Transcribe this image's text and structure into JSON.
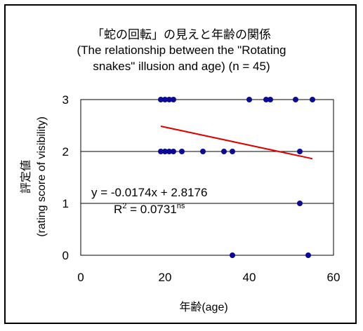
{
  "chart_data": {
    "type": "scatter",
    "title_lines": [
      "「蛇の回転」の見えと年齢の関係",
      "(The relationship between the \"Rotating",
      "snakes\" illusion and age) (n = 45)"
    ],
    "xlabel": "年齢(age)",
    "ylabel_lines": [
      "評定値",
      "(rating score of visibility)"
    ],
    "xlim": [
      0,
      60
    ],
    "ylim": [
      0,
      3
    ],
    "xticks": [
      0,
      20,
      40,
      60
    ],
    "yticks": [
      0,
      1,
      2,
      3
    ],
    "grid": "horizontal",
    "series": [
      {
        "color": "#0a0a96",
        "points": [
          {
            "x": 19,
            "y": 3
          },
          {
            "x": 20,
            "y": 3
          },
          {
            "x": 21,
            "y": 3
          },
          {
            "x": 22,
            "y": 3
          },
          {
            "x": 40,
            "y": 3
          },
          {
            "x": 44,
            "y": 3
          },
          {
            "x": 45,
            "y": 3
          },
          {
            "x": 51,
            "y": 3
          },
          {
            "x": 55,
            "y": 3
          },
          {
            "x": 19,
            "y": 2
          },
          {
            "x": 20,
            "y": 2
          },
          {
            "x": 21,
            "y": 2
          },
          {
            "x": 22,
            "y": 2
          },
          {
            "x": 24,
            "y": 2
          },
          {
            "x": 29,
            "y": 2
          },
          {
            "x": 34,
            "y": 2
          },
          {
            "x": 36,
            "y": 2
          },
          {
            "x": 52,
            "y": 2
          },
          {
            "x": 52,
            "y": 1
          },
          {
            "x": 36,
            "y": 0
          },
          {
            "x": 54,
            "y": 0
          }
        ]
      }
    ],
    "trendline": {
      "color": "#e00000",
      "slope": -0.0174,
      "intercept": 2.8176,
      "x_range": [
        19,
        55
      ]
    },
    "annotations": {
      "equation": "y = -0.0174x + 2.8176",
      "r2_prefix": "R",
      "r2_sup": "2",
      "r2_value": " = 0.0731",
      "r2_sig": "ns"
    }
  }
}
